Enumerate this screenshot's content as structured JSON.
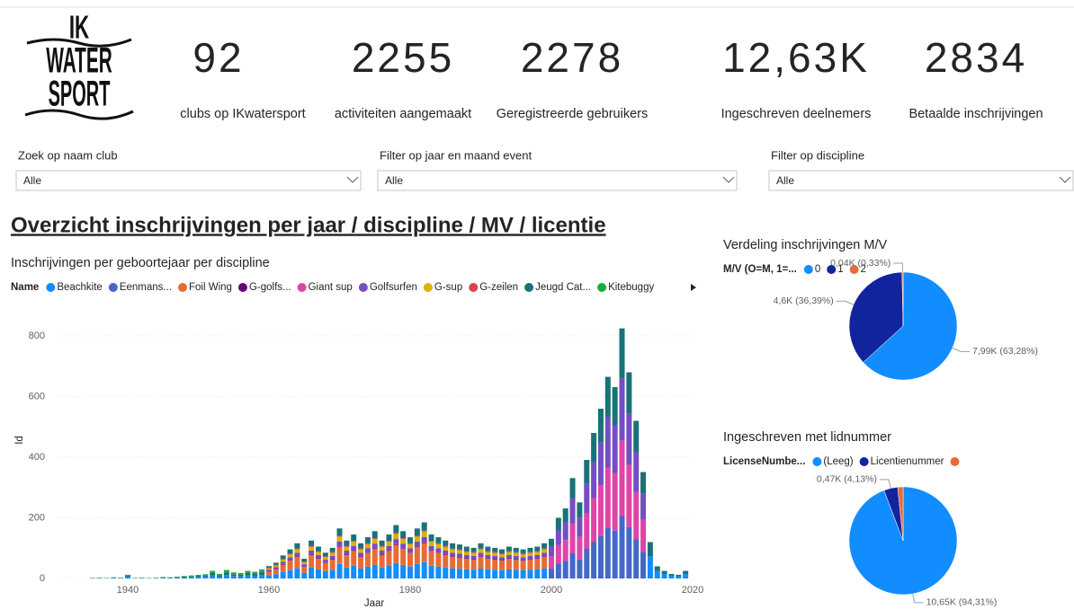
{
  "header": {
    "logo": [
      "IK",
      "WATER",
      "SPORT"
    ]
  },
  "kpis": [
    {
      "value": "92",
      "caption": "clubs op IKwatersport"
    },
    {
      "value": "2255",
      "caption": "activiteiten aangemaakt"
    },
    {
      "value": "2278",
      "caption": "Geregistreerde gebruikers"
    },
    {
      "value": "12,63K",
      "caption": "Ingeschreven deelnemers"
    },
    {
      "value": "2834",
      "caption": "Betaalde inschrijvingen"
    }
  ],
  "slicers": [
    {
      "label": "Zoek op naam club",
      "value": "Alle"
    },
    {
      "label": "Filter op jaar en maand event",
      "value": "Alle"
    },
    {
      "label": "Filter op discipline",
      "value": "Alle"
    }
  ],
  "title": "Overzicht inschrijvingen per jaar / discipline / MV / licentie",
  "chart_data": [
    {
      "type": "bar",
      "stacked": true,
      "title": "Inschrijvingen per geboortejaar per discipline",
      "legend_title": "Name",
      "x_label": "Jaar",
      "y_label": "Id",
      "grid": true,
      "xlim": [
        1930,
        2020
      ],
      "xticks": [
        1940,
        1960,
        1980,
        2000,
        2020
      ],
      "ylim": [
        0,
        840
      ],
      "yticks": [
        0,
        200,
        400,
        600,
        800
      ],
      "x": [
        1935,
        1936,
        1937,
        1938,
        1939,
        1940,
        1941,
        1942,
        1943,
        1944,
        1945,
        1946,
        1947,
        1948,
        1949,
        1950,
        1951,
        1952,
        1953,
        1954,
        1955,
        1956,
        1957,
        1958,
        1959,
        1960,
        1961,
        1962,
        1963,
        1964,
        1965,
        1966,
        1967,
        1968,
        1969,
        1970,
        1971,
        1972,
        1973,
        1974,
        1975,
        1976,
        1977,
        1978,
        1979,
        1980,
        1981,
        1982,
        1983,
        1984,
        1985,
        1986,
        1987,
        1988,
        1989,
        1990,
        1991,
        1992,
        1993,
        1994,
        1995,
        1996,
        1997,
        1998,
        1999,
        2000,
        2001,
        2002,
        2003,
        2004,
        2005,
        2006,
        2007,
        2008,
        2009,
        2010,
        2011,
        2012,
        2013,
        2014,
        2015,
        2016,
        2017,
        2018,
        2019
      ],
      "series": [
        {
          "name": "Beachkite",
          "color": "#118dff",
          "values": [
            1,
            1,
            1,
            2,
            1,
            5,
            1,
            1,
            1,
            1,
            2,
            2,
            2,
            3,
            4,
            5,
            6,
            10,
            6,
            11,
            8,
            7,
            10,
            9,
            12,
            11,
            14,
            21,
            27,
            33,
            18,
            36,
            30,
            24,
            29,
            48,
            36,
            42,
            33,
            39,
            45,
            36,
            42,
            51,
            45,
            39,
            48,
            54,
            42,
            39,
            36,
            33,
            32,
            30,
            29,
            33,
            30,
            29,
            27,
            30,
            29,
            27,
            29,
            30,
            33,
            0,
            0,
            0,
            0,
            0,
            0,
            0,
            0,
            0,
            0,
            0,
            0,
            0,
            0,
            72,
            24,
            15,
            9,
            7,
            15
          ]
        },
        {
          "name": "Eenmans...",
          "color": "#4468c8",
          "values": [
            0,
            0,
            0,
            0,
            0,
            0,
            0,
            0,
            0,
            0,
            0,
            0,
            0,
            0,
            0,
            0,
            0,
            0,
            0,
            0,
            0,
            0,
            0,
            0,
            0,
            0,
            0,
            0,
            0,
            0,
            0,
            0,
            0,
            0,
            0,
            0,
            0,
            0,
            0,
            0,
            0,
            0,
            0,
            0,
            0,
            0,
            0,
            0,
            0,
            0,
            0,
            0,
            0,
            0,
            0,
            0,
            0,
            0,
            0,
            0,
            0,
            0,
            0,
            0,
            0,
            33,
            50,
            58,
            83,
            63,
            98,
            120,
            140,
            166,
            158,
            206,
            170,
            130,
            88,
            0,
            0,
            0,
            0,
            0,
            0
          ]
        },
        {
          "name": "Foil Wing",
          "color": "#e66c37",
          "values": [
            0,
            0,
            0,
            0,
            0,
            0,
            0,
            0,
            0,
            0,
            0,
            0,
            0,
            0,
            0,
            0,
            0,
            0,
            0,
            0,
            0,
            0,
            0,
            0,
            0,
            12,
            16,
            25,
            32,
            39,
            21,
            42,
            35,
            28,
            33,
            56,
            42,
            49,
            39,
            46,
            53,
            42,
            49,
            60,
            53,
            46,
            56,
            63,
            49,
            46,
            42,
            39,
            37,
            35,
            33,
            39,
            35,
            33,
            32,
            35,
            33,
            32,
            33,
            35,
            39,
            0,
            0,
            0,
            0,
            0,
            0,
            0,
            0,
            0,
            0,
            0,
            0,
            0,
            0,
            0,
            0,
            0,
            0,
            0,
            0
          ]
        },
        {
          "name": "G-golfs...",
          "color": "#6b007b",
          "values": [
            0,
            0,
            0,
            0,
            0,
            0,
            0,
            0,
            0,
            0,
            0,
            0,
            0,
            0,
            0,
            0,
            0,
            0,
            0,
            0,
            0,
            0,
            0,
            0,
            0,
            2,
            2,
            2,
            2,
            2,
            2,
            2,
            2,
            2,
            2,
            2,
            2,
            2,
            2,
            2,
            2,
            2,
            2,
            2,
            2,
            2,
            2,
            2,
            2,
            2,
            2,
            2,
            2,
            2,
            2,
            2,
            2,
            2,
            2,
            2,
            2,
            2,
            2,
            2,
            2,
            0,
            0,
            0,
            0,
            0,
            0,
            0,
            0,
            0,
            0,
            0,
            0,
            0,
            0,
            0,
            0,
            0,
            0,
            0,
            0
          ]
        },
        {
          "name": "Giant sup",
          "color": "#e044a7",
          "values": [
            0,
            0,
            0,
            0,
            0,
            0,
            0,
            0,
            0,
            0,
            0,
            0,
            0,
            0,
            0,
            0,
            0,
            0,
            0,
            0,
            0,
            0,
            0,
            0,
            0,
            0,
            0,
            0,
            0,
            0,
            0,
            0,
            0,
            0,
            0,
            0,
            0,
            0,
            0,
            0,
            0,
            0,
            0,
            0,
            0,
            0,
            0,
            0,
            0,
            0,
            0,
            0,
            0,
            0,
            0,
            0,
            0,
            0,
            0,
            0,
            0,
            0,
            0,
            0,
            0,
            39,
            60,
            69,
            99,
            75,
            117,
            144,
            168,
            200,
            189,
            248,
            204,
            156,
            105,
            0,
            0,
            0,
            0,
            0,
            0
          ]
        },
        {
          "name": "Golfsurfen",
          "color": "#744ec2",
          "values": [
            0,
            0,
            0,
            0,
            0,
            0,
            0,
            0,
            0,
            0,
            0,
            0,
            0,
            0,
            0,
            0,
            0,
            0,
            0,
            0,
            0,
            0,
            0,
            0,
            0,
            4,
            5,
            7,
            9,
            11,
            6,
            12,
            10,
            8,
            10,
            16,
            12,
            14,
            11,
            13,
            15,
            12,
            14,
            17,
            15,
            13,
            16,
            18,
            14,
            13,
            12,
            11,
            11,
            10,
            10,
            11,
            10,
            10,
            9,
            10,
            10,
            9,
            10,
            10,
            11,
            33,
            50,
            58,
            83,
            63,
            98,
            120,
            140,
            166,
            158,
            206,
            170,
            130,
            88,
            0,
            0,
            0,
            0,
            0,
            0
          ]
        },
        {
          "name": "G-sup",
          "color": "#d9b300",
          "values": [
            0,
            0,
            0,
            0,
            0,
            0,
            0,
            0,
            0,
            0,
            0,
            0,
            0,
            0,
            0,
            0,
            0,
            0,
            0,
            0,
            0,
            0,
            0,
            0,
            0,
            4,
            5,
            7,
            9,
            11,
            6,
            12,
            10,
            8,
            10,
            16,
            12,
            14,
            11,
            13,
            15,
            12,
            14,
            17,
            15,
            13,
            16,
            18,
            14,
            13,
            12,
            11,
            11,
            10,
            10,
            11,
            10,
            10,
            9,
            10,
            10,
            9,
            10,
            10,
            11,
            0,
            0,
            0,
            0,
            0,
            0,
            0,
            0,
            0,
            0,
            0,
            0,
            0,
            0,
            0,
            0,
            0,
            0,
            0,
            0
          ]
        },
        {
          "name": "G-zeilen",
          "color": "#d64550",
          "values": [
            0,
            0,
            0,
            0,
            0,
            0,
            0,
            0,
            0,
            0,
            0,
            0,
            0,
            0,
            0,
            0,
            0,
            0,
            0,
            0,
            0,
            0,
            0,
            0,
            0,
            3,
            3,
            3,
            3,
            3,
            3,
            3,
            3,
            3,
            3,
            3,
            3,
            3,
            3,
            3,
            3,
            3,
            3,
            3,
            3,
            3,
            3,
            3,
            3,
            3,
            3,
            3,
            3,
            3,
            3,
            3,
            3,
            3,
            3,
            3,
            3,
            3,
            3,
            3,
            3,
            0,
            0,
            0,
            0,
            0,
            0,
            0,
            0,
            0,
            0,
            0,
            0,
            0,
            0,
            0,
            0,
            0,
            0,
            0,
            0
          ]
        },
        {
          "name": "Jeugd Cat...",
          "color": "#197278",
          "values": [
            1,
            1,
            0,
            1,
            1,
            4,
            0,
            1,
            0,
            1,
            2,
            1,
            2,
            3,
            3,
            4,
            4,
            8,
            5,
            9,
            6,
            5,
            8,
            7,
            9,
            5,
            7,
            11,
            14,
            17,
            9,
            18,
            15,
            12,
            14,
            24,
            18,
            21,
            17,
            20,
            23,
            18,
            21,
            26,
            23,
            20,
            24,
            27,
            21,
            20,
            18,
            17,
            16,
            15,
            14,
            17,
            15,
            14,
            14,
            15,
            14,
            14,
            14,
            15,
            17,
            26,
            40,
            46,
            66,
            50,
            78,
            96,
            112,
            133,
            126,
            165,
            136,
            104,
            70,
            48,
            16,
            10,
            6,
            5,
            10
          ]
        },
        {
          "name": "Kitebuggy",
          "color": "#1aab40",
          "values": [
            0,
            1,
            1,
            1,
            1,
            3,
            1,
            1,
            1,
            1,
            1,
            1,
            2,
            2,
            3,
            3,
            4,
            7,
            4,
            8,
            6,
            6,
            7,
            6,
            9,
            0,
            0,
            0,
            0,
            0,
            0,
            0,
            0,
            0,
            0,
            0,
            0,
            0,
            0,
            0,
            0,
            0,
            0,
            0,
            0,
            0,
            0,
            0,
            0,
            0,
            0,
            0,
            0,
            0,
            0,
            0,
            0,
            0,
            0,
            0,
            0,
            0,
            0,
            0,
            0,
            0,
            0,
            0,
            0,
            0,
            0,
            0,
            0,
            0,
            0,
            0,
            0,
            0,
            0,
            0,
            0,
            0,
            0,
            0,
            0
          ]
        }
      ]
    },
    {
      "type": "pie",
      "title": "Verdeling inschrijvingen M/V",
      "legend_title": "M/V (O=M, 1=...",
      "categories": [
        "0",
        "1",
        "2"
      ],
      "values": [
        7990,
        4600,
        40
      ],
      "value_labels": [
        "7,99K (63,28%)",
        "4,6K (36,39%)",
        "0,04K (0,33%)"
      ],
      "colors": [
        "#118dff",
        "#12239e",
        "#e66c37"
      ]
    },
    {
      "type": "pie",
      "title": "Ingeschreven met lidnummer",
      "legend_title": "LicenseNumbe...",
      "categories": [
        "(Leeg)",
        "Licentienummer",
        null
      ],
      "values": [
        10650,
        470,
        180
      ],
      "value_labels": [
        "10,65K (94,31%)",
        "0,47K (4,13%)",
        null
      ],
      "colors": [
        "#118dff",
        "#12239e",
        "#e66c37"
      ]
    }
  ]
}
